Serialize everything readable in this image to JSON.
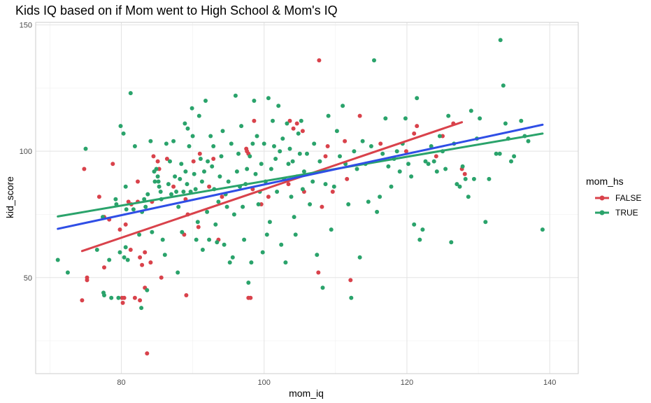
{
  "chart_data": {
    "type": "scatter",
    "title": "Kids IQ based on if Mom went to High School & Mom's IQ",
    "xlabel": "mom_iq",
    "ylabel": "kid_score",
    "xlim": [
      68,
      144
    ],
    "ylim": [
      12,
      151
    ],
    "x_ticks": [
      80,
      100,
      120,
      140
    ],
    "y_ticks": [
      50,
      100,
      150
    ],
    "grid": true,
    "legend": {
      "title": "mom_hs",
      "position": "right",
      "entries": [
        {
          "label": "FALSE",
          "color": "#d9424b"
        },
        {
          "label": "TRUE",
          "color": "#2aa36b"
        }
      ]
    },
    "series": [
      {
        "name": "FALSE",
        "color": "#d9424b",
        "points": [
          [
            74.5,
            41
          ],
          [
            74.8,
            93
          ],
          [
            75.2,
            50
          ],
          [
            75.2,
            49
          ],
          [
            76.9,
            82
          ],
          [
            77.6,
            74
          ],
          [
            77.6,
            54
          ],
          [
            78.3,
            73
          ],
          [
            78.8,
            95
          ],
          [
            79.8,
            69
          ],
          [
            80.1,
            42
          ],
          [
            80.2,
            40
          ],
          [
            80.4,
            42
          ],
          [
            80.6,
            71
          ],
          [
            81.0,
            80
          ],
          [
            81.3,
            61
          ],
          [
            81.4,
            79
          ],
          [
            81.9,
            42
          ],
          [
            82.3,
            80
          ],
          [
            82.3,
            88
          ],
          [
            82.6,
            41
          ],
          [
            82.6,
            58
          ],
          [
            82.9,
            55
          ],
          [
            83.3,
            46
          ],
          [
            83.3,
            60
          ],
          [
            83.6,
            20
          ],
          [
            84.1,
            56
          ],
          [
            84.3,
            80
          ],
          [
            84.5,
            98
          ],
          [
            85.1,
            96
          ],
          [
            85.3,
            93
          ],
          [
            85.6,
            50
          ],
          [
            86.4,
            97
          ],
          [
            87.3,
            86
          ],
          [
            88.8,
            67
          ],
          [
            89.0,
            81
          ],
          [
            89.1,
            43
          ],
          [
            89.3,
            75
          ],
          [
            90.1,
            96
          ],
          [
            90.8,
            70
          ],
          [
            91.0,
            99
          ],
          [
            92.3,
            86
          ],
          [
            92.9,
            97
          ],
          [
            93.6,
            65
          ],
          [
            94.1,
            82
          ],
          [
            97.5,
            101
          ],
          [
            97.6,
            100
          ],
          [
            97.8,
            99
          ],
          [
            97.8,
            42
          ],
          [
            98.1,
            42
          ],
          [
            98.4,
            85
          ],
          [
            98.6,
            112
          ],
          [
            99.6,
            79
          ],
          [
            100.6,
            82
          ],
          [
            103.4,
            87
          ],
          [
            103.6,
            112
          ],
          [
            104.1,
            109
          ],
          [
            104.6,
            111
          ],
          [
            105.4,
            108
          ],
          [
            105.6,
            84
          ],
          [
            107.6,
            52
          ],
          [
            107.7,
            136
          ],
          [
            108.1,
            78
          ],
          [
            108.9,
            102
          ],
          [
            108.6,
            98
          ],
          [
            109.6,
            84
          ],
          [
            111.3,
            104
          ],
          [
            111.6,
            89
          ],
          [
            112.1,
            49
          ],
          [
            113.4,
            114
          ],
          [
            116.3,
            103
          ],
          [
            119.9,
            100
          ],
          [
            121.0,
            107
          ],
          [
            121.4,
            110
          ],
          [
            124.1,
            98
          ],
          [
            125.0,
            106
          ],
          [
            126.5,
            111
          ],
          [
            127.7,
            93
          ],
          [
            128.1,
            91
          ]
        ]
      },
      {
        "name": "TRUE",
        "color": "#2aa36b",
        "points": [
          [
            71.1,
            57
          ],
          [
            72.5,
            52
          ],
          [
            75.0,
            101
          ],
          [
            76.6,
            61
          ],
          [
            77.4,
            74
          ],
          [
            77.5,
            44
          ],
          [
            77.6,
            43
          ],
          [
            78.3,
            57
          ],
          [
            78.6,
            42
          ],
          [
            79.2,
            81
          ],
          [
            79.3,
            79
          ],
          [
            79.6,
            42
          ],
          [
            79.8,
            60
          ],
          [
            79.9,
            110
          ],
          [
            80.3,
            107
          ],
          [
            80.4,
            58
          ],
          [
            80.6,
            62
          ],
          [
            80.6,
            86
          ],
          [
            80.7,
            77
          ],
          [
            80.9,
            57
          ],
          [
            81.3,
            123
          ],
          [
            81.7,
            77
          ],
          [
            81.9,
            102
          ],
          [
            82.5,
            67
          ],
          [
            82.8,
            38
          ],
          [
            82.9,
            76
          ],
          [
            83.2,
            81
          ],
          [
            83.4,
            78
          ],
          [
            83.6,
            45
          ],
          [
            83.7,
            83
          ],
          [
            84.1,
            104
          ],
          [
            84.3,
            68
          ],
          [
            84.6,
            92
          ],
          [
            84.7,
            88
          ],
          [
            84.9,
            93
          ],
          [
            85.1,
            90
          ],
          [
            85.2,
            88
          ],
          [
            85.3,
            86
          ],
          [
            85.5,
            84
          ],
          [
            85.6,
            81
          ],
          [
            85.8,
            65
          ],
          [
            86.1,
            59
          ],
          [
            86.3,
            103
          ],
          [
            86.6,
            87
          ],
          [
            86.8,
            96
          ],
          [
            87.0,
            83
          ],
          [
            87.3,
            104
          ],
          [
            87.5,
            90
          ],
          [
            87.7,
            84
          ],
          [
            87.9,
            52
          ],
          [
            88.0,
            78
          ],
          [
            88.2,
            89
          ],
          [
            88.4,
            95
          ],
          [
            88.5,
            68
          ],
          [
            88.7,
            84
          ],
          [
            88.9,
            111
          ],
          [
            89.0,
            92
          ],
          [
            89.2,
            87
          ],
          [
            89.3,
            109
          ],
          [
            89.5,
            102
          ],
          [
            89.7,
            84
          ],
          [
            89.9,
            117
          ],
          [
            90.0,
            106
          ],
          [
            90.2,
            91
          ],
          [
            90.4,
            85
          ],
          [
            90.5,
            65
          ],
          [
            90.7,
            72
          ],
          [
            90.9,
            114
          ],
          [
            91.1,
            97
          ],
          [
            91.3,
            88
          ],
          [
            91.4,
            61
          ],
          [
            91.6,
            92
          ],
          [
            91.8,
            120
          ],
          [
            92.0,
            76
          ],
          [
            92.1,
            96
          ],
          [
            92.3,
            65
          ],
          [
            92.5,
            106
          ],
          [
            92.7,
            94
          ],
          [
            92.9,
            102
          ],
          [
            93.0,
            85
          ],
          [
            93.2,
            71
          ],
          [
            93.4,
            64
          ],
          [
            93.6,
            80
          ],
          [
            93.8,
            90
          ],
          [
            94.0,
            98
          ],
          [
            94.2,
            108
          ],
          [
            94.4,
            63
          ],
          [
            94.6,
            83
          ],
          [
            94.8,
            78
          ],
          [
            95.0,
            88
          ],
          [
            95.2,
            56
          ],
          [
            95.4,
            103
          ],
          [
            95.6,
            58
          ],
          [
            95.8,
            75
          ],
          [
            96.0,
            122
          ],
          [
            96.2,
            92
          ],
          [
            96.4,
            99
          ],
          [
            96.6,
            86
          ],
          [
            96.8,
            110
          ],
          [
            97.0,
            78
          ],
          [
            97.2,
            65
          ],
          [
            97.4,
            87
          ],
          [
            97.6,
            93
          ],
          [
            97.8,
            48
          ],
          [
            98.0,
            98
          ],
          [
            98.2,
            56
          ],
          [
            98.4,
            103
          ],
          [
            98.6,
            120
          ],
          [
            98.8,
            91
          ],
          [
            99.0,
            106
          ],
          [
            99.2,
            79
          ],
          [
            99.4,
            84
          ],
          [
            99.6,
            95
          ],
          [
            99.8,
            60
          ],
          [
            100.0,
            103
          ],
          [
            100.2,
            88
          ],
          [
            100.4,
            67
          ],
          [
            100.6,
            121
          ],
          [
            100.8,
            72
          ],
          [
            101.0,
            93
          ],
          [
            101.2,
            112
          ],
          [
            101.4,
            102
          ],
          [
            101.6,
            97
          ],
          [
            101.8,
            84
          ],
          [
            102.0,
            118
          ],
          [
            102.2,
            100
          ],
          [
            102.4,
            63
          ],
          [
            102.6,
            105
          ],
          [
            102.8,
            89
          ],
          [
            103.0,
            56
          ],
          [
            103.2,
            111
          ],
          [
            103.4,
            95
          ],
          [
            103.6,
            101
          ],
          [
            103.8,
            82
          ],
          [
            104.0,
            96
          ],
          [
            104.2,
            74
          ],
          [
            104.4,
            67
          ],
          [
            104.6,
            90
          ],
          [
            104.8,
            107
          ],
          [
            105.0,
            99
          ],
          [
            105.2,
            112
          ],
          [
            105.4,
            85
          ],
          [
            105.6,
            92
          ],
          [
            106.0,
            99
          ],
          [
            106.4,
            79
          ],
          [
            106.8,
            88
          ],
          [
            107.0,
            103
          ],
          [
            107.4,
            59
          ],
          [
            107.8,
            96
          ],
          [
            108.2,
            46
          ],
          [
            108.6,
            87
          ],
          [
            109.0,
            114
          ],
          [
            109.4,
            69
          ],
          [
            109.8,
            86
          ],
          [
            110.2,
            108
          ],
          [
            110.6,
            98
          ],
          [
            111.0,
            118
          ],
          [
            111.4,
            95
          ],
          [
            111.8,
            79
          ],
          [
            112.2,
            42
          ],
          [
            112.6,
            100
          ],
          [
            113.0,
            93
          ],
          [
            113.4,
            58
          ],
          [
            113.8,
            104
          ],
          [
            114.2,
            95
          ],
          [
            114.6,
            80
          ],
          [
            115.0,
            102
          ],
          [
            115.4,
            136
          ],
          [
            115.8,
            76
          ],
          [
            116.2,
            82
          ],
          [
            116.6,
            99
          ],
          [
            117.0,
            113
          ],
          [
            117.4,
            94
          ],
          [
            117.8,
            86
          ],
          [
            118.2,
            97
          ],
          [
            118.6,
            100
          ],
          [
            119.0,
            92
          ],
          [
            119.4,
            103
          ],
          [
            119.8,
            113
          ],
          [
            120.2,
            95
          ],
          [
            120.6,
            90
          ],
          [
            121.0,
            71
          ],
          [
            121.4,
            121
          ],
          [
            121.8,
            65
          ],
          [
            122.2,
            69
          ],
          [
            122.6,
            96
          ],
          [
            123.0,
            95
          ],
          [
            123.4,
            102
          ],
          [
            123.8,
            96
          ],
          [
            124.2,
            92
          ],
          [
            124.6,
            106
          ],
          [
            125.0,
            100
          ],
          [
            125.4,
            93
          ],
          [
            125.8,
            114
          ],
          [
            126.2,
            64
          ],
          [
            126.6,
            103
          ],
          [
            127.0,
            87
          ],
          [
            127.4,
            86
          ],
          [
            127.8,
            94
          ],
          [
            128.2,
            89
          ],
          [
            128.6,
            82
          ],
          [
            129.0,
            116
          ],
          [
            129.4,
            89
          ],
          [
            129.8,
            105
          ],
          [
            130.2,
            113
          ],
          [
            131.0,
            72
          ],
          [
            131.5,
            89
          ],
          [
            132.5,
            99
          ],
          [
            133.0,
            99
          ],
          [
            133.1,
            144
          ],
          [
            133.5,
            126
          ],
          [
            133.8,
            111
          ],
          [
            134.2,
            105
          ],
          [
            134.6,
            96
          ],
          [
            135.0,
            98
          ],
          [
            136.0,
            112
          ],
          [
            136.5,
            106
          ],
          [
            137.0,
            104
          ],
          [
            139.0,
            69
          ]
        ]
      }
    ],
    "fit_lines": [
      {
        "name": "FALSE",
        "color": "#d9424b",
        "x": [
          74.5,
          127.7
        ],
        "y": [
          60.5,
          111.5
        ]
      },
      {
        "name": "TRUE",
        "color": "#2aa36b",
        "x": [
          71.1,
          139.0
        ],
        "y": [
          74.2,
          107.0
        ]
      },
      {
        "name": "overall",
        "color": "#2f4ee6",
        "x": [
          71.1,
          139.0
        ],
        "y": [
          69.3,
          110.5
        ]
      }
    ]
  }
}
